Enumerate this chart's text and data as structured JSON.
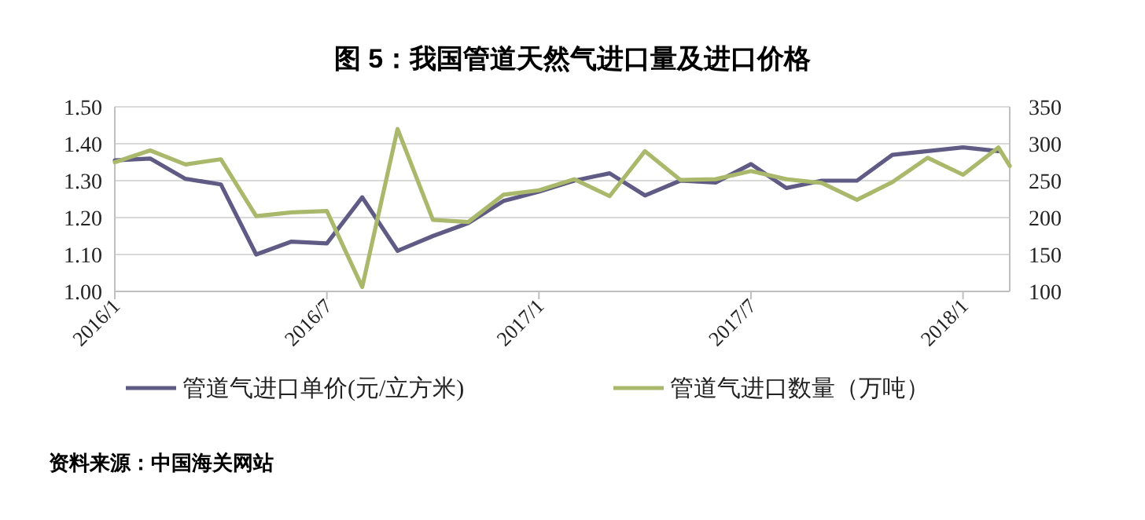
{
  "chart_data": {
    "type": "line",
    "title": "图 5：我国管道天然气进口量及进口价格",
    "annotations": [
      "资料来源：中国海关网站"
    ],
    "series": [
      {
        "name": "管道气进口单价(元/立方米)",
        "color": "#5f5b85",
        "x": [
          "2016-01",
          "2016-02",
          "2016-03",
          "2016-04",
          "2016-05",
          "2016-06",
          "2016-07",
          "2016-08",
          "2016-09",
          "2016-10",
          "2016-11",
          "2016-12",
          "2017-01",
          "2017-02",
          "2017-03",
          "2017-04",
          "2017-05",
          "2017-06",
          "2017-07",
          "2017-08",
          "2017-09",
          "2017-10",
          "2017-11",
          "2017-12",
          "2018-01",
          "2018-02"
        ],
        "values": [
          1.355,
          1.36,
          1.305,
          1.29,
          1.1,
          1.135,
          1.13,
          1.255,
          1.11,
          1.15,
          1.185,
          1.245,
          1.27,
          1.3,
          1.32,
          1.26,
          1.3,
          1.295,
          1.345,
          1.28,
          1.3,
          1.3,
          1.37,
          1.38,
          1.39,
          1.38
        ]
      },
      {
        "name": "管道气进口数量（万吨）",
        "color": "#a9b86a",
        "axis": "y2",
        "x": [
          "2016-01",
          "2016-02",
          "2016-03",
          "2016-04",
          "2016-05",
          "2016-06",
          "2016-07",
          "2016-08",
          "2016-09",
          "2016-10",
          "2016-11",
          "2016-12",
          "2017-01",
          "2017-02",
          "2017-03",
          "2017-04",
          "2017-05",
          "2017-06",
          "2017-07",
          "2017-08",
          "2017-09",
          "2017-10",
          "2017-11",
          "2017-12",
          "2018-01",
          "2018-02",
          "2018-02-10"
        ],
        "values": [
          275,
          291,
          272,
          279,
          202,
          207,
          209,
          106,
          320,
          197,
          194,
          231,
          237,
          252,
          229,
          290,
          251,
          252,
          263,
          252,
          247,
          224,
          248,
          281,
          258,
          295,
          270
        ]
      }
    ],
    "xlim": [
      "2016-01",
      "2018-02-10"
    ],
    "xticks": [
      {
        "value": "2016-01",
        "label": "2016/1"
      },
      {
        "value": "2016-07",
        "label": "2016/7"
      },
      {
        "value": "2017-01",
        "label": "2017/1"
      },
      {
        "value": "2017-07",
        "label": "2017/7"
      },
      {
        "value": "2018-01",
        "label": "2018/1"
      }
    ],
    "ylim": [
      1.0,
      1.5
    ],
    "yticks": [
      {
        "value": 1.0,
        "label": "1.00"
      },
      {
        "value": 1.1,
        "label": "1.10"
      },
      {
        "value": 1.2,
        "label": "1.20"
      },
      {
        "value": 1.3,
        "label": "1.30"
      },
      {
        "value": 1.4,
        "label": "1.40"
      },
      {
        "value": 1.5,
        "label": "1.50"
      }
    ],
    "y2lim": [
      100,
      350
    ],
    "y2ticks": [
      100,
      150,
      200,
      250,
      300,
      350
    ],
    "grid": "y",
    "legend": "bottom",
    "marker": "none",
    "line_style": "solid"
  }
}
